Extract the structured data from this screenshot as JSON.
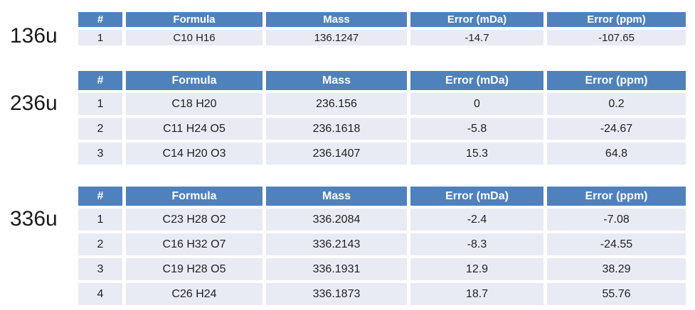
{
  "colors": {
    "background": "#FFFFFF",
    "header_bg": "#4F81BD",
    "header_text": "#FFFFFF",
    "row_bg": "#E9EBF4",
    "body_text": "#1F1F1F",
    "label_text": "#1A1A1A"
  },
  "chart_data": [
    {
      "type": "table",
      "title": "136u",
      "columns": [
        "#",
        "Formula",
        "Mass",
        "Error (mDa)",
        "Error (ppm)"
      ],
      "rows": [
        [
          "1",
          "C10 H16",
          "136.1247",
          "-14.7",
          "-107.65"
        ]
      ]
    },
    {
      "type": "table",
      "title": "236u",
      "columns": [
        "#",
        "Formula",
        "Mass",
        "Error (mDa)",
        "Error (ppm)"
      ],
      "rows": [
        [
          "1",
          "C18 H20",
          "236.156",
          "0",
          "0.2"
        ],
        [
          "2",
          "C11 H24 O5",
          "236.1618",
          "-5.8",
          "-24.67"
        ],
        [
          "3",
          "C14 H20 O3",
          "236.1407",
          "15.3",
          "64.8"
        ]
      ]
    },
    {
      "type": "table",
      "title": "336u",
      "columns": [
        "#",
        "Formula",
        "Mass",
        "Error (mDa)",
        "Error (ppm)"
      ],
      "rows": [
        [
          "1",
          "C23 H28 O2",
          "336.2084",
          "-2.4",
          "-7.08"
        ],
        [
          "2",
          "C16 H32 O7",
          "336.2143",
          "-8.3",
          "-24.55"
        ],
        [
          "3",
          "C19 H28 O5",
          "336.1931",
          "12.9",
          "38.29"
        ],
        [
          "4",
          "C26 H24",
          "336.1873",
          "18.7",
          "55.76"
        ]
      ]
    }
  ]
}
